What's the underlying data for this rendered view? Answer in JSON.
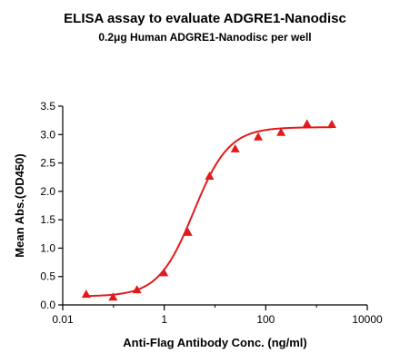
{
  "chart_data": {
    "type": "scatter",
    "title": "ELISA assay to evaluate ADGRE1-Nanodisc",
    "subtitle": "0.2μg Human ADGRE1-Nanodisc per well",
    "xlabel": "Anti-Flag Antibody Conc. (ng/ml)",
    "ylabel": "Mean Abs.(OD450)",
    "xscale": "log",
    "xlim": [
      0.01,
      10000
    ],
    "ylim": [
      0.0,
      3.5
    ],
    "xticks": [
      0.01,
      1,
      100,
      10000
    ],
    "xtick_labels": [
      "0.01",
      "1",
      "100",
      "10000"
    ],
    "yticks": [
      0.0,
      0.5,
      1.0,
      1.5,
      2.0,
      2.5,
      3.0,
      3.5
    ],
    "ytick_labels": [
      "0.0",
      "0.5",
      "1.0",
      "1.5",
      "2.0",
      "2.5",
      "3.0",
      "3.5"
    ],
    "grid": false,
    "color": "#e31a1c",
    "marker": "triangle",
    "points": {
      "x": [
        0.029,
        0.098,
        0.29,
        0.98,
        2.93,
        7.8,
        25,
        71,
        200,
        650,
        2000
      ],
      "y": [
        0.19,
        0.14,
        0.27,
        0.57,
        1.28,
        2.27,
        2.75,
        2.96,
        3.04,
        3.19,
        3.18
      ]
    },
    "fit_curve": {
      "model": "4PL",
      "bottom": 0.15,
      "top": 3.13,
      "ec50": 3.8,
      "hill": 1.25
    }
  }
}
